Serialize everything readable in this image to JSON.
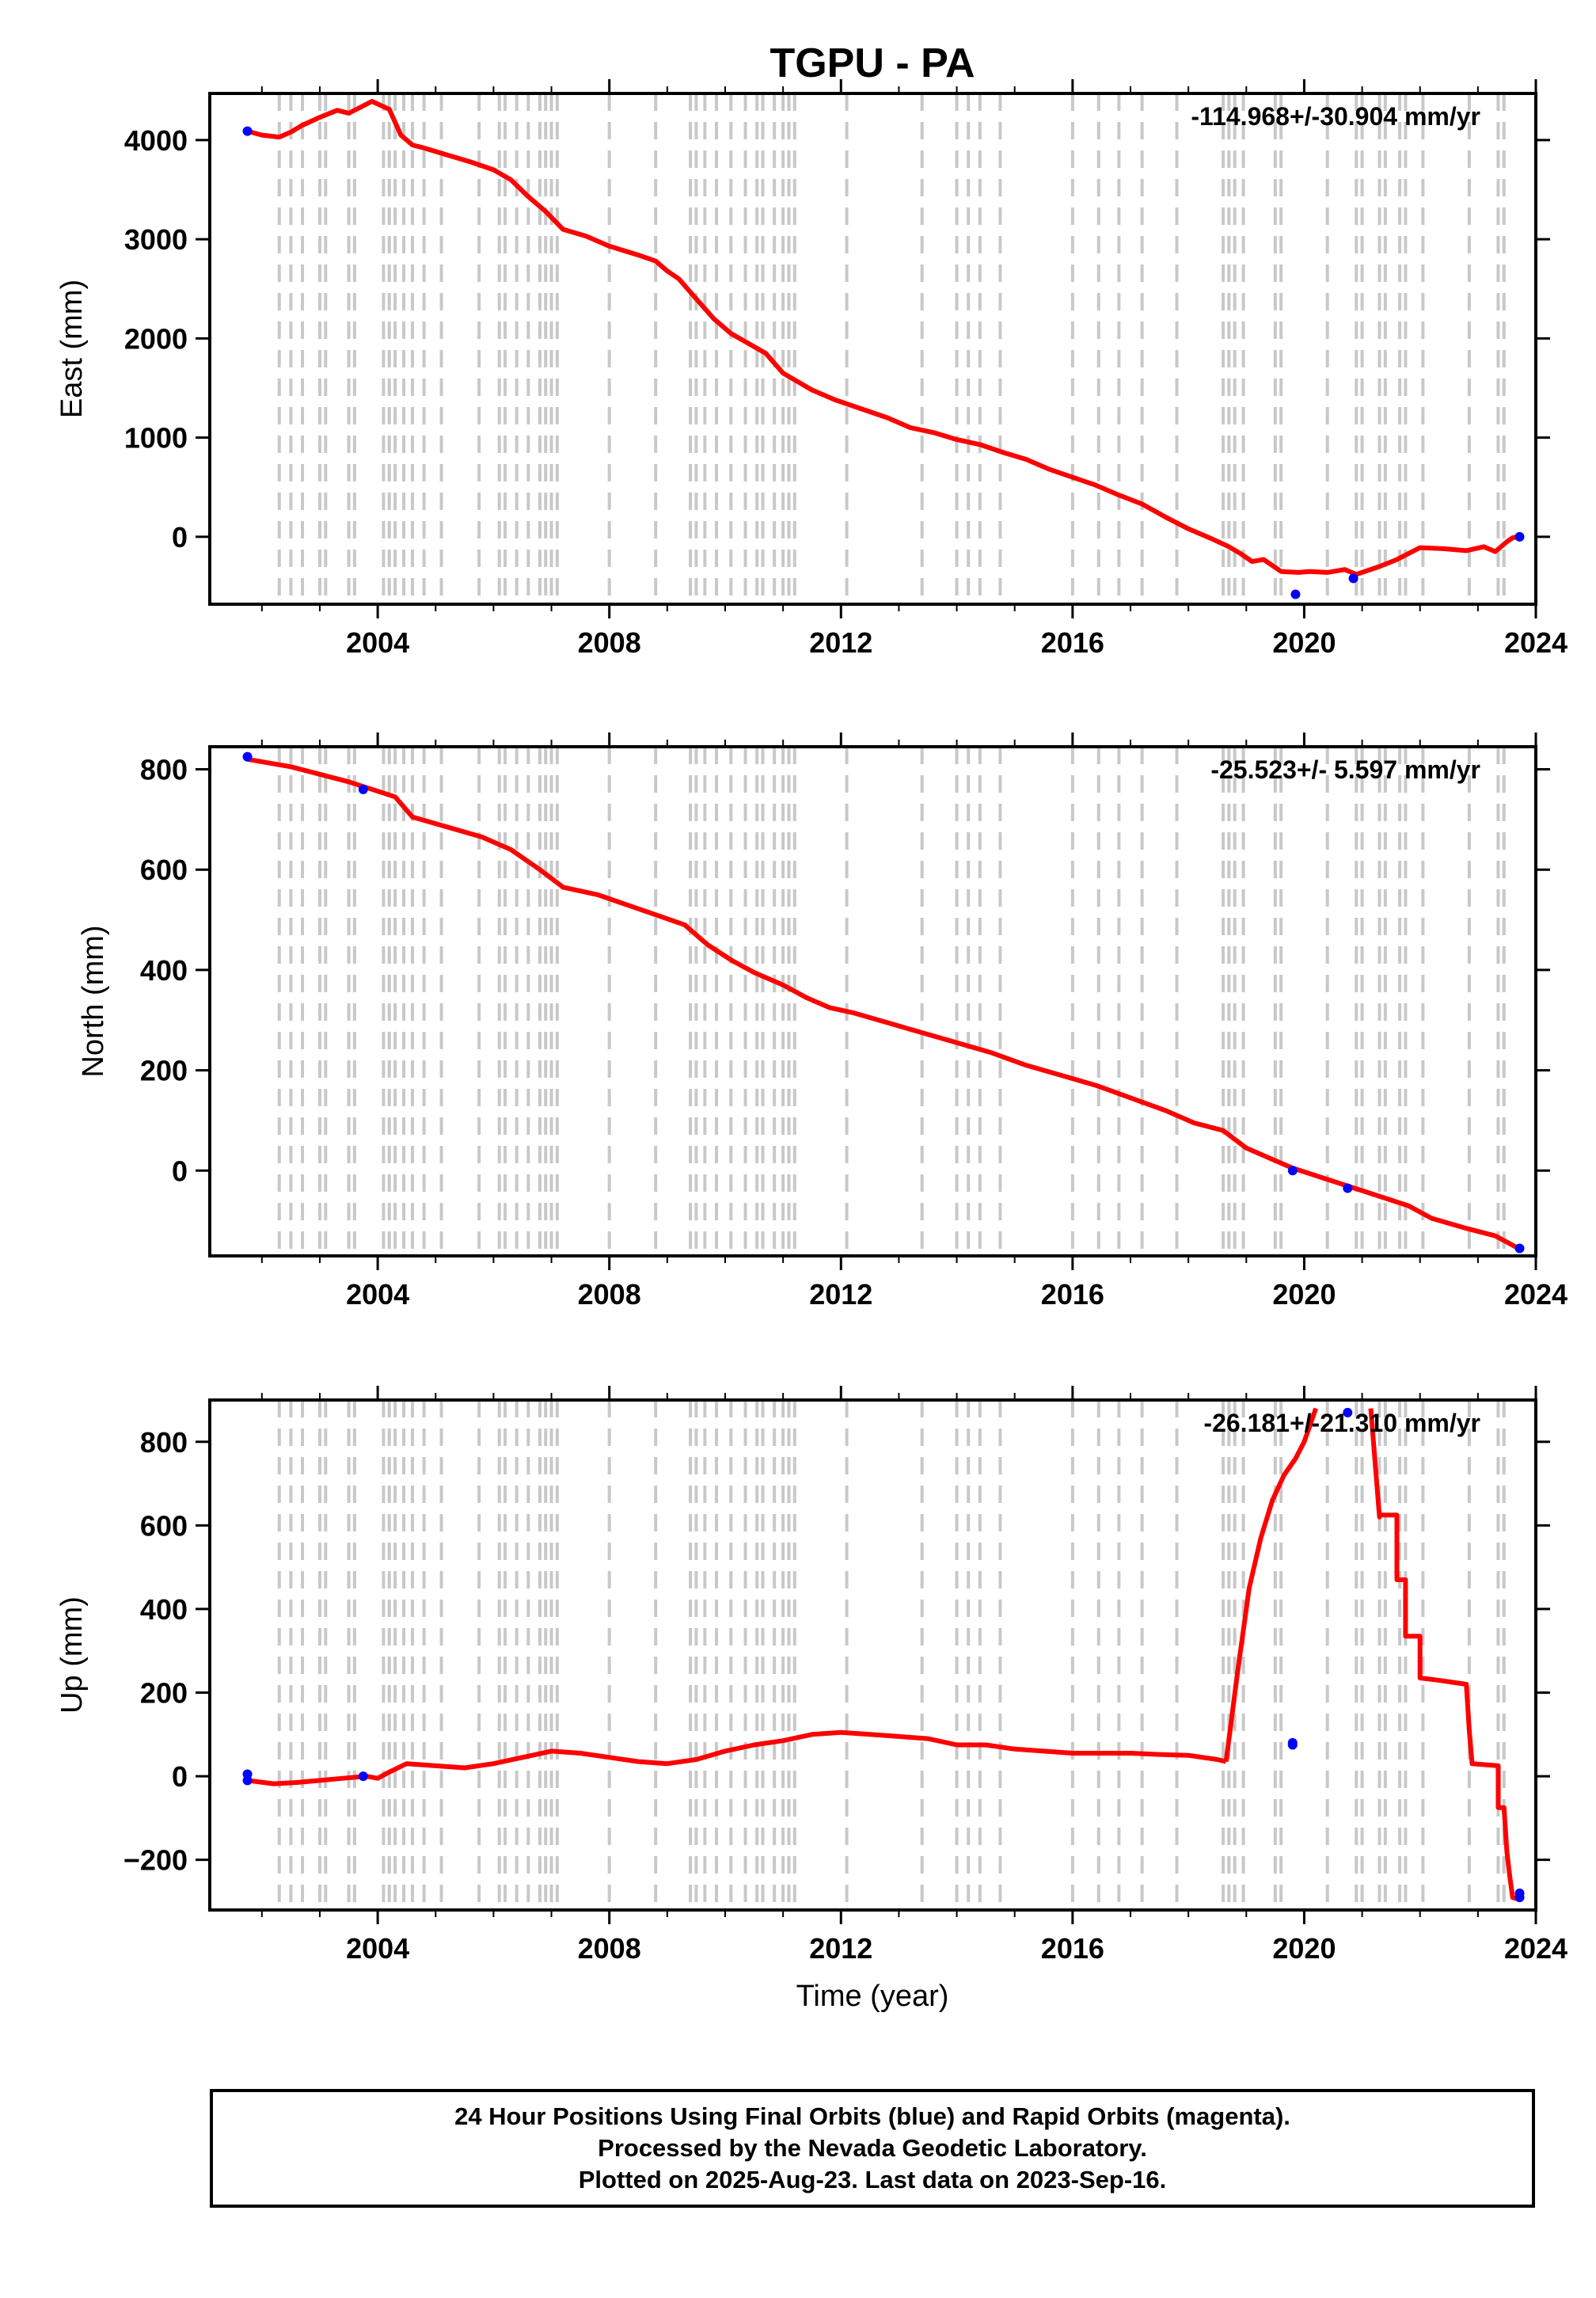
{
  "title": "TGPU - PA",
  "xlabel": "Time (year)",
  "x_tick_labels": [
    "2004",
    "2008",
    "2012",
    "2016",
    "2020",
    "2024"
  ],
  "colors": {
    "series": "#ff0000",
    "points": "#0000ff",
    "events": "#c8c8c8",
    "axes": "#000000"
  },
  "footer": {
    "line1": "24 Hour Positions Using Final Orbits (blue) and Rapid Orbits (magenta).",
    "line2": "Processed by the Nevada Geodetic Laboratory.",
    "line3": "Plotted on 2025-Aug-23. Last data on 2023-Sep-16."
  },
  "chart_data": [
    {
      "type": "line",
      "panel": "east",
      "ylabel": "East (mm)",
      "rate_label": "-114.968+/-30.904 mm/yr",
      "xlim": [
        2001.1,
        2024.0
      ],
      "ylim": [
        -680,
        4470
      ],
      "y_ticks": [
        0,
        1000,
        2000,
        3000,
        4000
      ],
      "series": [
        {
          "x": [
            2001.75,
            2002.0,
            2002.3,
            2002.5,
            2002.7,
            2003.0,
            2003.3,
            2003.5,
            2003.7,
            2003.9,
            2004.2,
            2004.4,
            2004.6,
            2004.8,
            2005.2,
            2005.6,
            2006.0,
            2006.3,
            2006.6,
            2006.9,
            2007.2,
            2007.6,
            2008.0,
            2008.5,
            2008.8,
            2009.0,
            2009.2,
            2009.5,
            2009.8,
            2010.1,
            2010.4,
            2010.7,
            2011.0,
            2011.5,
            2011.9,
            2012.3,
            2012.8,
            2013.2,
            2013.6,
            2014.0,
            2014.4,
            2014.8,
            2015.2,
            2015.6,
            2016.0,
            2016.4,
            2016.8,
            2017.2,
            2017.6,
            2018.0,
            2018.4,
            2018.7,
            2018.9,
            2019.1,
            2019.3,
            2019.6,
            2019.9,
            2020.1,
            2020.4,
            2020.7,
            2020.9,
            2021.1,
            2021.3,
            2021.6,
            2021.8,
            2022.0,
            2022.4,
            2022.8,
            2023.1,
            2023.3,
            2023.5,
            2023.6,
            2023.7
          ],
          "y": [
            4090,
            4050,
            4030,
            4080,
            4150,
            4230,
            4300,
            4270,
            4330,
            4390,
            4310,
            4050,
            3950,
            3920,
            3850,
            3780,
            3700,
            3600,
            3430,
            3280,
            3100,
            3030,
            2930,
            2840,
            2780,
            2680,
            2600,
            2400,
            2200,
            2050,
            1950,
            1850,
            1650,
            1480,
            1380,
            1300,
            1200,
            1100,
            1050,
            980,
            930,
            850,
            780,
            680,
            600,
            520,
            420,
            330,
            200,
            80,
            -20,
            -100,
            -170,
            -250,
            -230,
            -350,
            -360,
            -350,
            -360,
            -330,
            -380,
            -340,
            -300,
            -230,
            -170,
            -110,
            -120,
            -140,
            -100,
            -150,
            -50,
            -10,
            0
          ]
        }
      ],
      "points": [
        {
          "x": 2001.75,
          "y": 4090
        },
        {
          "x": 2019.85,
          "y": -580
        },
        {
          "x": 2020.85,
          "y": -420
        },
        {
          "x": 2023.72,
          "y": 0
        }
      ]
    },
    {
      "type": "line",
      "panel": "north",
      "ylabel": "North (mm)",
      "rate_label": "-25.523+/- 5.597 mm/yr",
      "xlim": [
        2001.1,
        2024.0
      ],
      "ylim": [
        -170,
        845
      ],
      "y_ticks": [
        0,
        200,
        400,
        600,
        800
      ],
      "series": [
        {
          "x": [
            2001.75,
            2002.5,
            2003.0,
            2003.5,
            2003.9,
            2004.3,
            2004.6,
            2005.2,
            2005.8,
            2006.3,
            2006.8,
            2007.2,
            2007.8,
            2008.3,
            2008.8,
            2009.3,
            2009.7,
            2010.1,
            2010.5,
            2011.0,
            2011.4,
            2011.8,
            2012.2,
            2012.8,
            2013.4,
            2014.0,
            2014.6,
            2015.2,
            2015.8,
            2016.4,
            2017.0,
            2017.6,
            2018.1,
            2018.6,
            2019.0,
            2019.4,
            2019.8,
            2020.2,
            2020.6,
            2021.0,
            2021.4,
            2021.8,
            2022.2,
            2022.8,
            2023.3,
            2023.7
          ],
          "y": [
            820,
            805,
            790,
            775,
            760,
            745,
            705,
            685,
            665,
            640,
            600,
            565,
            550,
            530,
            510,
            490,
            450,
            420,
            395,
            370,
            345,
            325,
            315,
            295,
            275,
            255,
            235,
            210,
            190,
            170,
            145,
            120,
            95,
            80,
            45,
            25,
            5,
            -10,
            -25,
            -40,
            -55,
            -70,
            -95,
            -115,
            -130,
            -155
          ]
        }
      ],
      "points": [
        {
          "x": 2001.75,
          "y": 825
        },
        {
          "x": 2003.75,
          "y": 760
        },
        {
          "x": 2019.8,
          "y": 0
        },
        {
          "x": 2020.75,
          "y": -35
        },
        {
          "x": 2023.72,
          "y": -155
        }
      ]
    },
    {
      "type": "line",
      "panel": "up",
      "ylabel": "Up (mm)",
      "rate_label": "-26.181+/-21.310 mm/yr",
      "xlim": [
        2001.1,
        2024.0
      ],
      "ylim": [
        -320,
        900
      ],
      "y_ticks": [
        -200,
        0,
        200,
        400,
        600,
        800
      ],
      "series": [
        {
          "x": [
            2001.75,
            2002.2,
            2002.6,
            2003.0,
            2003.4,
            2003.8,
            2004.0,
            2004.2,
            2004.5,
            2005.0,
            2005.5,
            2006.0,
            2006.5,
            2007.0,
            2007.5,
            2008.0,
            2008.5,
            2009.0,
            2009.5,
            2010.0,
            2010.5,
            2011.0,
            2011.5,
            2012.0,
            2012.5,
            2013.0,
            2013.5,
            2014.0,
            2014.5,
            2015.0,
            2015.5,
            2016.0,
            2016.5,
            2017.0,
            2017.5,
            2018.0,
            2018.5,
            2018.65
          ],
          "y": [
            -10,
            -18,
            -15,
            -10,
            -5,
            0,
            -5,
            10,
            30,
            25,
            20,
            30,
            45,
            60,
            55,
            45,
            35,
            30,
            40,
            60,
            75,
            85,
            100,
            105,
            100,
            95,
            90,
            75,
            75,
            65,
            60,
            55,
            55,
            55,
            52,
            50,
            40,
            35
          ]
        },
        {
          "x": [
            2018.65,
            2018.85,
            2019.05,
            2019.25,
            2019.45,
            2019.65,
            2019.85,
            2020.0,
            2020.2
          ],
          "y": [
            35,
            250,
            450,
            570,
            660,
            720,
            760,
            800,
            880
          ]
        },
        {
          "x": [
            2021.15,
            2021.3,
            2021.3,
            2021.6,
            2021.6,
            2021.75,
            2021.75,
            2022.0,
            2022.0,
            2022.3,
            2022.8,
            2022.85,
            2022.9,
            2023.35,
            2023.35,
            2023.45,
            2023.5,
            2023.55,
            2023.6,
            2023.72
          ],
          "y": [
            880,
            620,
            625,
            625,
            470,
            470,
            335,
            335,
            235,
            230,
            220,
            110,
            30,
            25,
            -75,
            -75,
            -180,
            -240,
            -290,
            -295
          ]
        }
      ],
      "points": [
        {
          "x": 2001.75,
          "y": 5
        },
        {
          "x": 2001.75,
          "y": -10
        },
        {
          "x": 2003.75,
          "y": 0
        },
        {
          "x": 2019.8,
          "y": 75
        },
        {
          "x": 2019.8,
          "y": 80
        },
        {
          "x": 2020.75,
          "y": 870
        },
        {
          "x": 2023.72,
          "y": -280
        },
        {
          "x": 2023.72,
          "y": -290
        }
      ]
    }
  ],
  "event_dates": [
    2002.3,
    2002.5,
    2002.7,
    2003.0,
    2003.1,
    2003.5,
    2003.6,
    2004.1,
    2004.2,
    2004.3,
    2004.45,
    2004.6,
    2004.8,
    2005.1,
    2005.75,
    2006.1,
    2006.2,
    2006.4,
    2006.6,
    2006.8,
    2006.9,
    2007.0,
    2007.1,
    2008.0,
    2008.8,
    2009.4,
    2009.5,
    2009.65,
    2009.85,
    2010.1,
    2010.35,
    2010.55,
    2010.65,
    2010.85,
    2011.0,
    2011.1,
    2011.2,
    2012.1,
    2013.4,
    2014.0,
    2014.2,
    2014.4,
    2014.75,
    2016.0,
    2016.45,
    2016.8,
    2017.2,
    2017.8,
    2018.6,
    2018.7,
    2018.8,
    2018.95,
    2019.5,
    2019.6,
    2020.4,
    2020.9,
    2021.0,
    2021.3,
    2021.4,
    2021.65,
    2021.75,
    2022.05,
    2022.85,
    2023.35,
    2023.45
  ]
}
